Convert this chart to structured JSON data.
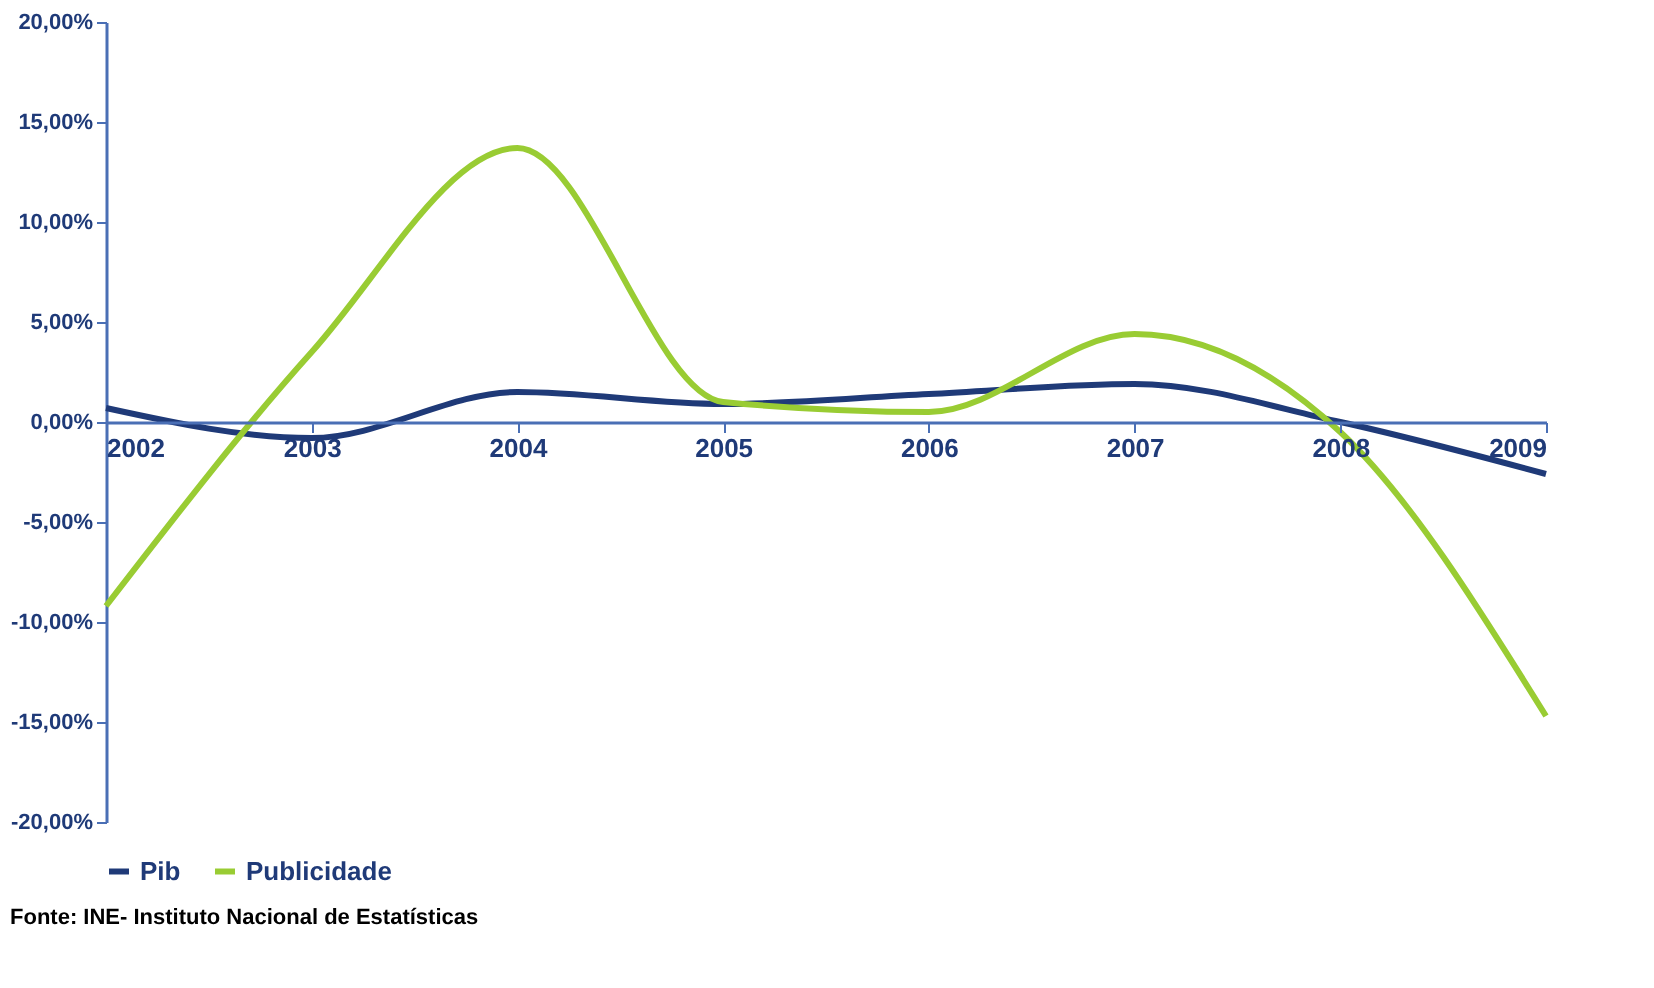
{
  "chart_data": {
    "type": "line",
    "categories": [
      "2002",
      "2003",
      "2004",
      "2005",
      "2006",
      "2007",
      "2008",
      "2009"
    ],
    "series": [
      {
        "name": "Pib",
        "color": "#1f3a78",
        "values": [
          0.7,
          -0.8,
          1.5,
          0.9,
          1.4,
          1.9,
          0.0,
          -2.6
        ]
      },
      {
        "name": "Publicidade",
        "color": "#99cc33",
        "values": [
          -9.2,
          3.5,
          13.7,
          1.0,
          0.5,
          4.4,
          -0.5,
          -14.7
        ]
      }
    ],
    "ylim": [
      -20,
      20
    ],
    "yticks": [
      {
        "value": -20,
        "label": "-20,00%"
      },
      {
        "value": -15,
        "label": "-15,00%"
      },
      {
        "value": -10,
        "label": "-10,00%"
      },
      {
        "value": -5,
        "label": "-5,00%"
      },
      {
        "value": 0,
        "label": "0,00%"
      },
      {
        "value": 5,
        "label": "5,00%"
      },
      {
        "value": 10,
        "label": "10,00%"
      },
      {
        "value": 15,
        "label": "15,00%"
      },
      {
        "value": 20,
        "label": "20,00%"
      }
    ],
    "grid": false,
    "legend": "bottom",
    "marker": "none",
    "line_style": "solid",
    "annotations": [
      "Fonte: INE- Instituto Nacional de Estatísticas"
    ]
  }
}
